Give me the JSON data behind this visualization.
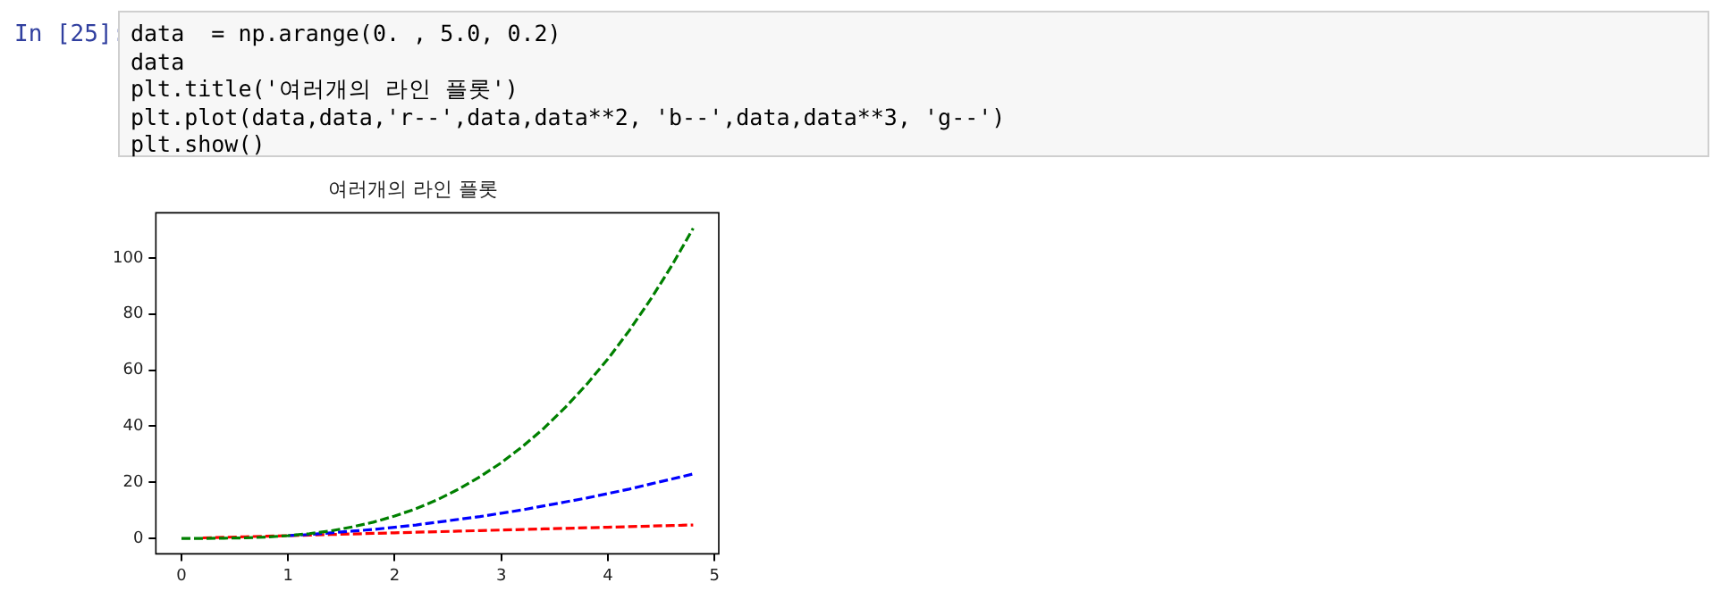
{
  "chart_data": {
    "type": "line",
    "title": "여러개의 라인 플롯",
    "annotations": [
      "In [25]:",
      "data  = np.arange(0. , 5.0, 0.2)",
      "data",
      "plt.title('여러개의 라인 플롯')",
      "plt.plot(data,data,'r--',data,data**2, 'b--',data,data**3, 'g--')",
      "plt.show()"
    ],
    "x": [
      0,
      0.2,
      0.4,
      0.6,
      0.8,
      1,
      1.2,
      1.4,
      1.6,
      1.8,
      2,
      2.2,
      2.4,
      2.6,
      2.8,
      3,
      3.2,
      3.4,
      3.6,
      3.8,
      4,
      4.2,
      4.4,
      4.6,
      4.8
    ],
    "series": [
      {
        "color": "#ff0000",
        "values": [
          null,
          0.2,
          0.4,
          0.6,
          0.8,
          1,
          1.2,
          1.4,
          1.6,
          1.8,
          2,
          2.2,
          2.4,
          2.6,
          2.8,
          3,
          3.2,
          3.4,
          3.6,
          3.8,
          4,
          4.2,
          4.4,
          4.6,
          4.8
        ]
      },
      {
        "color": "#0000ff",
        "values": [
          null,
          null,
          null,
          null,
          null,
          1,
          1.4,
          2,
          2.6,
          3.2,
          4,
          4.8,
          5.8,
          6.8,
          7.8,
          9,
          10.2,
          11.6,
          13,
          14.4,
          16,
          17.6,
          19.4,
          21.2,
          23
        ]
      },
      {
        "color": "#008000",
        "values": [
          0,
          0,
          0.1,
          0.2,
          0.5,
          1,
          1.7,
          2.7,
          4.1,
          5.8,
          8,
          10.6,
          13.8,
          17.6,
          22,
          27,
          32.8,
          39.3,
          46.7,
          54.9,
          64,
          74.1,
          85.2,
          97.3,
          110.6
        ]
      }
    ],
    "xlim": [
      -0.24,
      5.04
    ],
    "xticks": [
      0,
      1,
      2,
      3,
      4,
      5
    ],
    "ylim": [
      -5.5,
      116.1
    ],
    "yticks": [
      0,
      20,
      40,
      60,
      80,
      100
    ],
    "grid": false,
    "legend": false,
    "marker": "none",
    "line_style": "dashed"
  }
}
